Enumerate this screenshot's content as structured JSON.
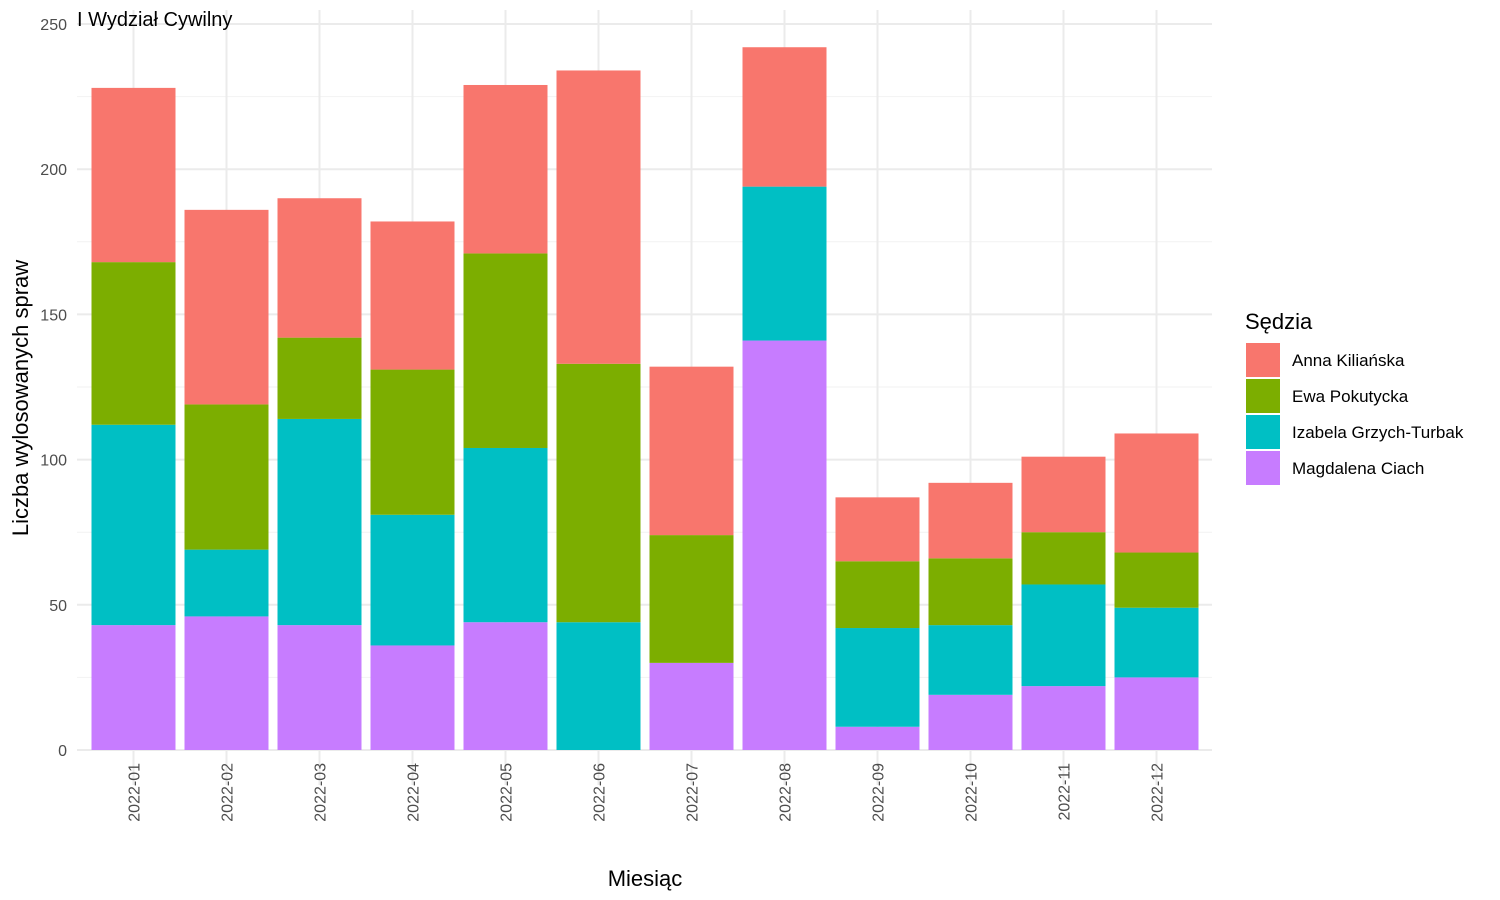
{
  "chart_data": {
    "type": "bar",
    "stacked": true,
    "title": "I Wydział Cywilny",
    "xlabel": "Miesiąc",
    "ylabel": "Liczba wylosowanych spraw",
    "ylim": [
      0,
      250
    ],
    "yticks": [
      0,
      50,
      100,
      150,
      200,
      250
    ],
    "grid": true,
    "legend": {
      "title": "Sędzia",
      "position": "right"
    },
    "categories": [
      "2022-01",
      "2022-02",
      "2022-03",
      "2022-04",
      "2022-05",
      "2022-06",
      "2022-07",
      "2022-08",
      "2022-09",
      "2022-10",
      "2022-11",
      "2022-12"
    ],
    "series": [
      {
        "name": "Anna Kiliańska",
        "color": "#F8766D",
        "values": [
          60,
          67,
          48,
          51,
          58,
          101,
          58,
          48,
          22,
          26,
          26,
          41
        ]
      },
      {
        "name": "Ewa Pokutycka",
        "color": "#7CAE00",
        "values": [
          56,
          50,
          28,
          50,
          67,
          89,
          44,
          0,
          23,
          23,
          18,
          19
        ]
      },
      {
        "name": "Izabela Grzych-Turbak",
        "color": "#00BFC4",
        "values": [
          69,
          23,
          71,
          45,
          60,
          44,
          0,
          53,
          34,
          24,
          35,
          24
        ]
      },
      {
        "name": "Magdalena Ciach",
        "color": "#C77CFF",
        "values": [
          43,
          46,
          43,
          36,
          44,
          0,
          30,
          141,
          8,
          19,
          22,
          25
        ]
      }
    ]
  }
}
